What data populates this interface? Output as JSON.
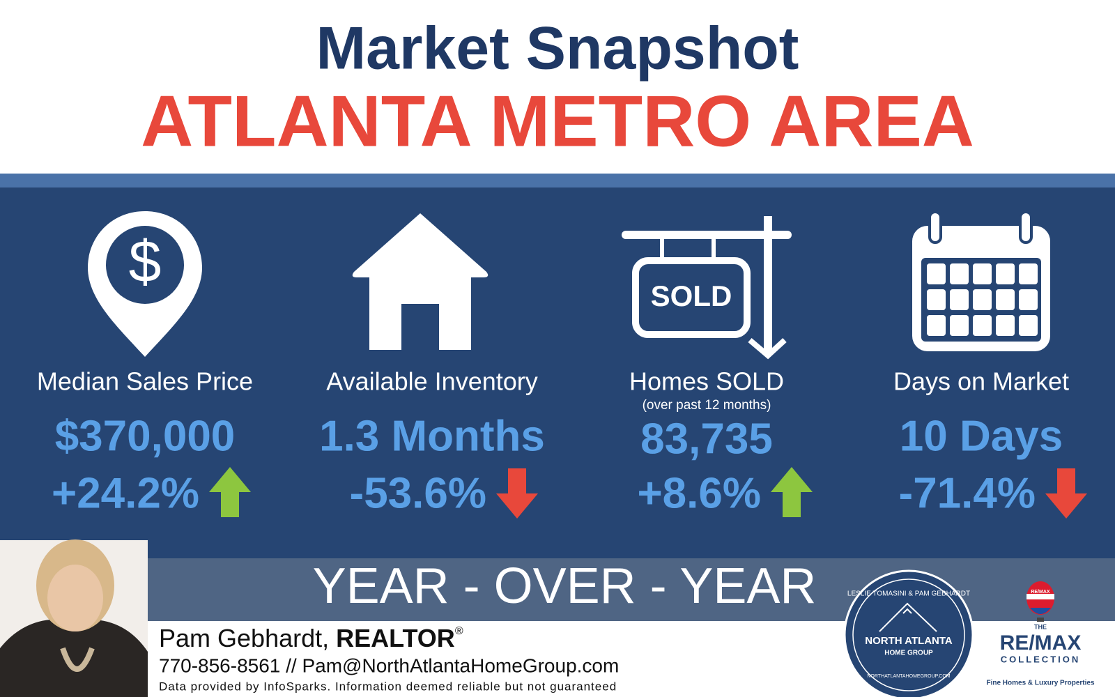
{
  "header": {
    "title": "Market Snapshot",
    "subtitle": "ATLANTA METRO AREA"
  },
  "stats": [
    {
      "label": "Median Sales Price",
      "value": "$370,000",
      "change": "+24.2%",
      "trend": "up"
    },
    {
      "label": "Available Inventory",
      "value": "1.3 Months",
      "change": "-53.6%",
      "trend": "down"
    },
    {
      "label": "Homes SOLD",
      "sublabel": "(over past 12 months)",
      "value": "83,735",
      "change": "+8.6%",
      "trend": "up"
    },
    {
      "label": "Days on Market",
      "value": "10 Days",
      "change": "-71.4%",
      "trend": "down"
    }
  ],
  "sign_text": "SOLD",
  "banner": "YEAR - OVER - YEAR",
  "footer": {
    "name": "Pam Gebhardt, ",
    "designation": "REALTOR",
    "mark": "®",
    "contact": "770-856-8561 // Pam@NorthAtlantaHomeGroup.com",
    "disclaimer": "Data provided by InfoSparks. Information deemed reliable but not guaranteed"
  },
  "group_logo": {
    "top": "LESLIE TOMASINI & PAM GEBHARDT",
    "name": "NORTH ATLANTA",
    "sub": "HOME GROUP",
    "url": "NORTHATLANTAHOMEGROUP.COM"
  },
  "brand_logo": {
    "balloon": "RE/MAX",
    "the": "THE",
    "name": "RE/MAX",
    "collection": "COLLECTION",
    "tagline": "Fine Homes & Luxury Properties"
  }
}
